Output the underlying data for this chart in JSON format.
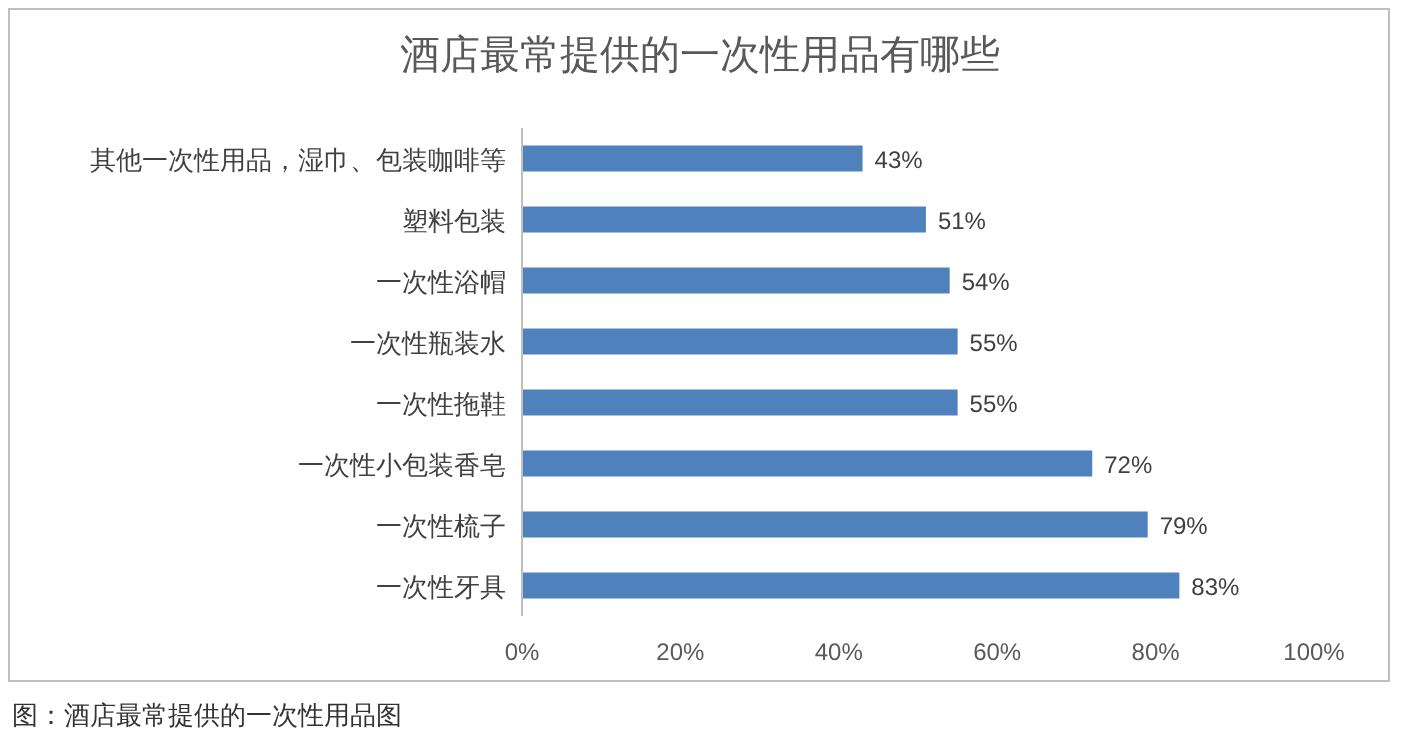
{
  "chart_data": {
    "type": "bar",
    "orientation": "horizontal",
    "title": "酒店最常提供的一次性用品有哪些",
    "categories": [
      "其他一次性用品，湿巾、包装咖啡等",
      "塑料包装",
      "一次性浴帽",
      "一次性瓶装水",
      "一次性拖鞋",
      "一次性小包装香皂",
      "一次性梳子",
      "一次性牙具"
    ],
    "values": [
      43,
      51,
      54,
      55,
      55,
      72,
      79,
      83
    ],
    "value_labels": [
      "43%",
      "51%",
      "54%",
      "55%",
      "55%",
      "72%",
      "79%",
      "83%"
    ],
    "color": "#4f81bd",
    "xlim": [
      0,
      100
    ],
    "xticks": [
      {
        "value": 0,
        "label": "0%"
      },
      {
        "value": 20,
        "label": "20%"
      },
      {
        "value": 40,
        "label": "40%"
      },
      {
        "value": 60,
        "label": "60%"
      },
      {
        "value": 80,
        "label": "80%"
      },
      {
        "value": 100,
        "label": "100%"
      }
    ],
    "annotations": [
      "图：酒店最常提供的一次性用品图"
    ]
  }
}
